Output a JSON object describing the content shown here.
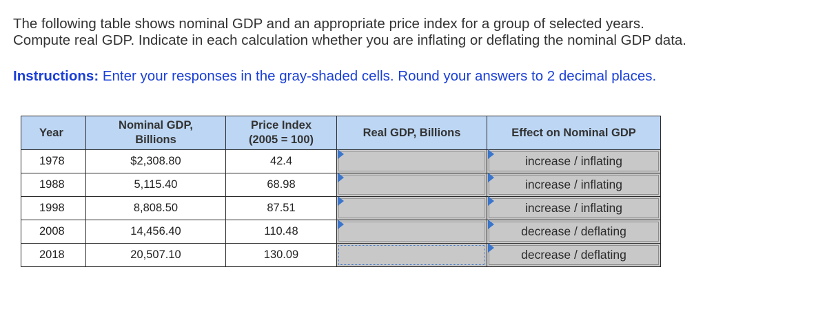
{
  "intro": {
    "line1": "The following table shows nominal GDP and an appropriate price index for a group of selected years.",
    "line2": "Compute real GDP. Indicate in each calculation whether you are inflating or deflating the nominal GDP data."
  },
  "instructions": {
    "label": "Instructions:",
    "text": " Enter your responses in the gray-shaded cells. Round your answers to 2 decimal places."
  },
  "table": {
    "headers": {
      "year": "Year",
      "nominal_line1": "Nominal GDP,",
      "nominal_line2": "Billions",
      "price_line1": "Price Index",
      "price_line2": "(2005 = 100)",
      "real": "Real GDP, Billions",
      "effect": "Effect on Nominal GDP"
    },
    "rows": [
      {
        "year": "1978",
        "nominal": "$2,308.80",
        "price": "42.4",
        "real": "",
        "effect": "increase / inflating"
      },
      {
        "year": "1988",
        "nominal": "5,115.40",
        "price": "68.98",
        "real": "",
        "effect": "increase / inflating"
      },
      {
        "year": "1998",
        "nominal": "8,808.50",
        "price": "87.51",
        "real": "",
        "effect": "increase / inflating"
      },
      {
        "year": "2008",
        "nominal": "14,456.40",
        "price": "110.48",
        "real": "",
        "effect": "decrease / deflating"
      },
      {
        "year": "2018",
        "nominal": "20,507.10",
        "price": "130.09",
        "real": "",
        "effect": "decrease / deflating"
      }
    ]
  },
  "colors": {
    "header_bg": "#bcd6f3",
    "input_bg": "#c8c8c8",
    "instructions_text": "#1a3fd6",
    "marker": "#3b75cc"
  }
}
